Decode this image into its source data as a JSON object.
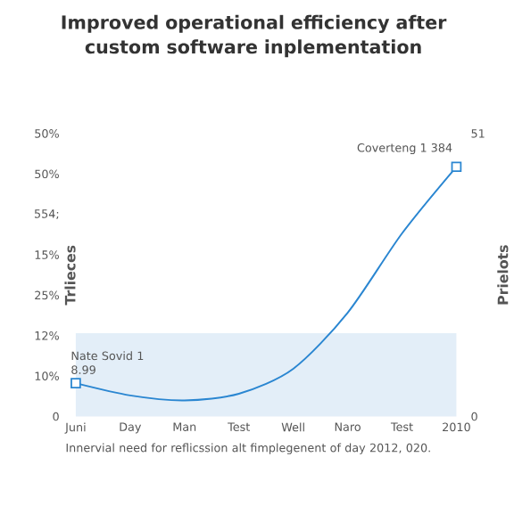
{
  "chart_data": {
    "type": "line",
    "title": "Improved operational efficiency after custom software inplementation",
    "categories": [
      "Juni",
      "Day",
      "Man",
      "Test",
      "Well",
      "Naro",
      "Test",
      "2010"
    ],
    "ylabel": "Trlieces",
    "y2label": "Prielots",
    "y2lim": [
      0,
      51
    ],
    "y2ticks": [
      0,
      51
    ],
    "series": [
      {
        "color": "#2a86d1",
        "axis": "y2",
        "values": [
          6.0,
          3.8,
          2.9,
          4.1,
          8.6,
          18.7,
          33,
          45
        ]
      }
    ],
    "bands": [
      {
        "axis": "y2",
        "from": 0,
        "to": 15,
        "color": "#e3eef8"
      }
    ],
    "line_style": "solid",
    "annotations": [
      "Nate Sovid 1 8.99",
      "Coverteng 1 384",
      "Innervial need for reflicssion alt fimplegenent of day 2012, 020.",
      "50%",
      "50%",
      "554;",
      "15%",
      "25%",
      "12%",
      "10%",
      "0"
    ]
  }
}
